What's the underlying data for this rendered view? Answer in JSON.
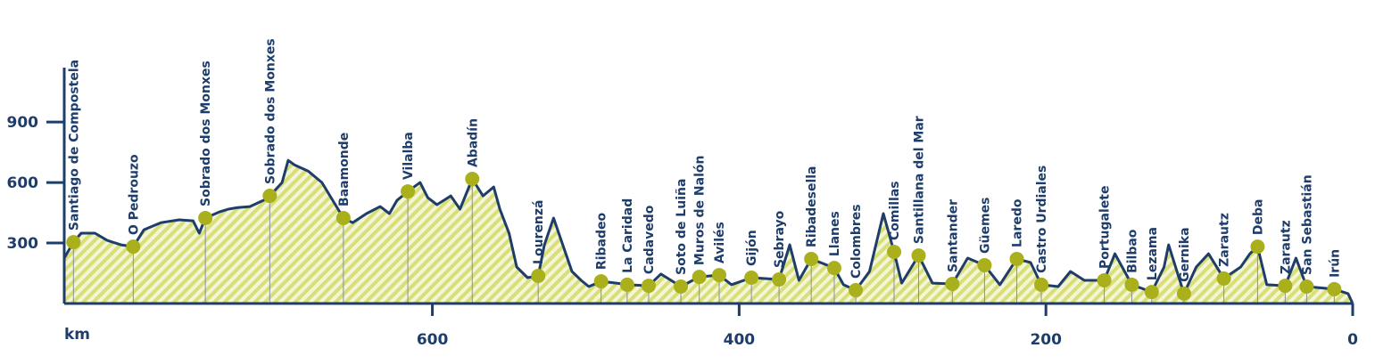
{
  "chart_data": {
    "type": "elevation-profile",
    "x_label": "km",
    "xlim": [
      840,
      0
    ],
    "xticks": [
      600,
      400,
      200,
      0
    ],
    "ylim": [
      0,
      1170
    ],
    "yticks": [
      300,
      600,
      900
    ],
    "line_color": "#1e3d6b",
    "fill_color": "#d8df77",
    "dot_color": "#a9b01c",
    "profile": {
      "x": [
        840,
        834,
        829,
        820,
        812,
        803,
        795,
        788,
        777,
        765,
        756,
        752,
        748,
        739,
        733,
        727,
        719,
        710,
        706,
        698,
        694,
        690,
        681,
        672,
        665,
        658,
        652,
        643,
        634,
        628,
        623,
        616,
        608,
        603,
        597,
        588,
        582,
        574,
        567,
        560,
        556,
        550,
        545,
        538,
        531,
        527,
        521,
        515,
        509,
        503,
        498,
        490,
        480,
        473,
        459,
        451,
        438,
        426,
        413,
        405,
        392,
        374,
        367,
        361,
        353,
        338,
        332,
        324,
        315,
        306,
        299,
        294,
        283,
        274,
        261,
        251,
        240,
        230,
        219,
        210,
        203,
        192,
        184,
        175,
        162,
        155,
        144,
        131,
        123,
        120,
        110,
        102,
        94,
        84,
        73,
        67,
        62,
        56,
        44,
        37,
        30,
        12,
        3,
        0
      ],
      "values": [
        225,
        304,
        349,
        349,
        313,
        291,
        282,
        366,
        401,
        415,
        410,
        349,
        424,
        454,
        468,
        476,
        481,
        512,
        534,
        600,
        710,
        688,
        657,
        600,
        512,
        424,
        401,
        446,
        481,
        446,
        512,
        556,
        600,
        525,
        490,
        534,
        468,
        618,
        534,
        578,
        468,
        349,
        181,
        128,
        137,
        291,
        424,
        291,
        159,
        115,
        84,
        110,
        101,
        93,
        88,
        146,
        84,
        132,
        141,
        93,
        128,
        119,
        291,
        115,
        221,
        176,
        93,
        66,
        159,
        446,
        256,
        101,
        238,
        101,
        97,
        225,
        190,
        93,
        221,
        203,
        93,
        84,
        159,
        115,
        115,
        247,
        93,
        57,
        181,
        291,
        49,
        181,
        247,
        124,
        181,
        247,
        282,
        93,
        88,
        225,
        84,
        71,
        49,
        0
      ]
    },
    "stops": {
      "names": [
        "Santiago de Compostela",
        "O Pedrouzo",
        "Sobrado dos Monxes",
        "Sobrado dos Monxes",
        "Baamonde",
        "Vilalba",
        "Abadín",
        "Lourenzá",
        "Ribadeo",
        "La Caridad",
        "Cadavedo",
        "Soto de Luiña",
        "Muros de Nalón",
        "Avilés",
        "Gijón",
        "Sebrayo",
        "Ribadesella",
        "Llanes",
        "Colombres",
        "Comillas",
        "Santillana del Mar",
        "Santander",
        "Güemes",
        "Laredo",
        "Castro Urdiales",
        "Portugalete",
        "Bilbao",
        "Lezama",
        "Gernika",
        "Zarautz",
        "Deba",
        "Zarautz",
        "San Sebastián",
        "Irún"
      ],
      "x": [
        834,
        795,
        748,
        706,
        658,
        616,
        574,
        531,
        490,
        473,
        459,
        438,
        426,
        413,
        392,
        374,
        353,
        338,
        324,
        299,
        283,
        261,
        240,
        219,
        203,
        162,
        144,
        131,
        110,
        84,
        62,
        44,
        30,
        12
      ],
      "values": [
        304,
        282,
        424,
        534,
        424,
        556,
        618,
        137,
        110,
        93,
        88,
        84,
        132,
        141,
        128,
        119,
        221,
        176,
        66,
        256,
        238,
        97,
        190,
        221,
        93,
        115,
        93,
        57,
        49,
        124,
        282,
        88,
        84,
        71
      ]
    }
  }
}
